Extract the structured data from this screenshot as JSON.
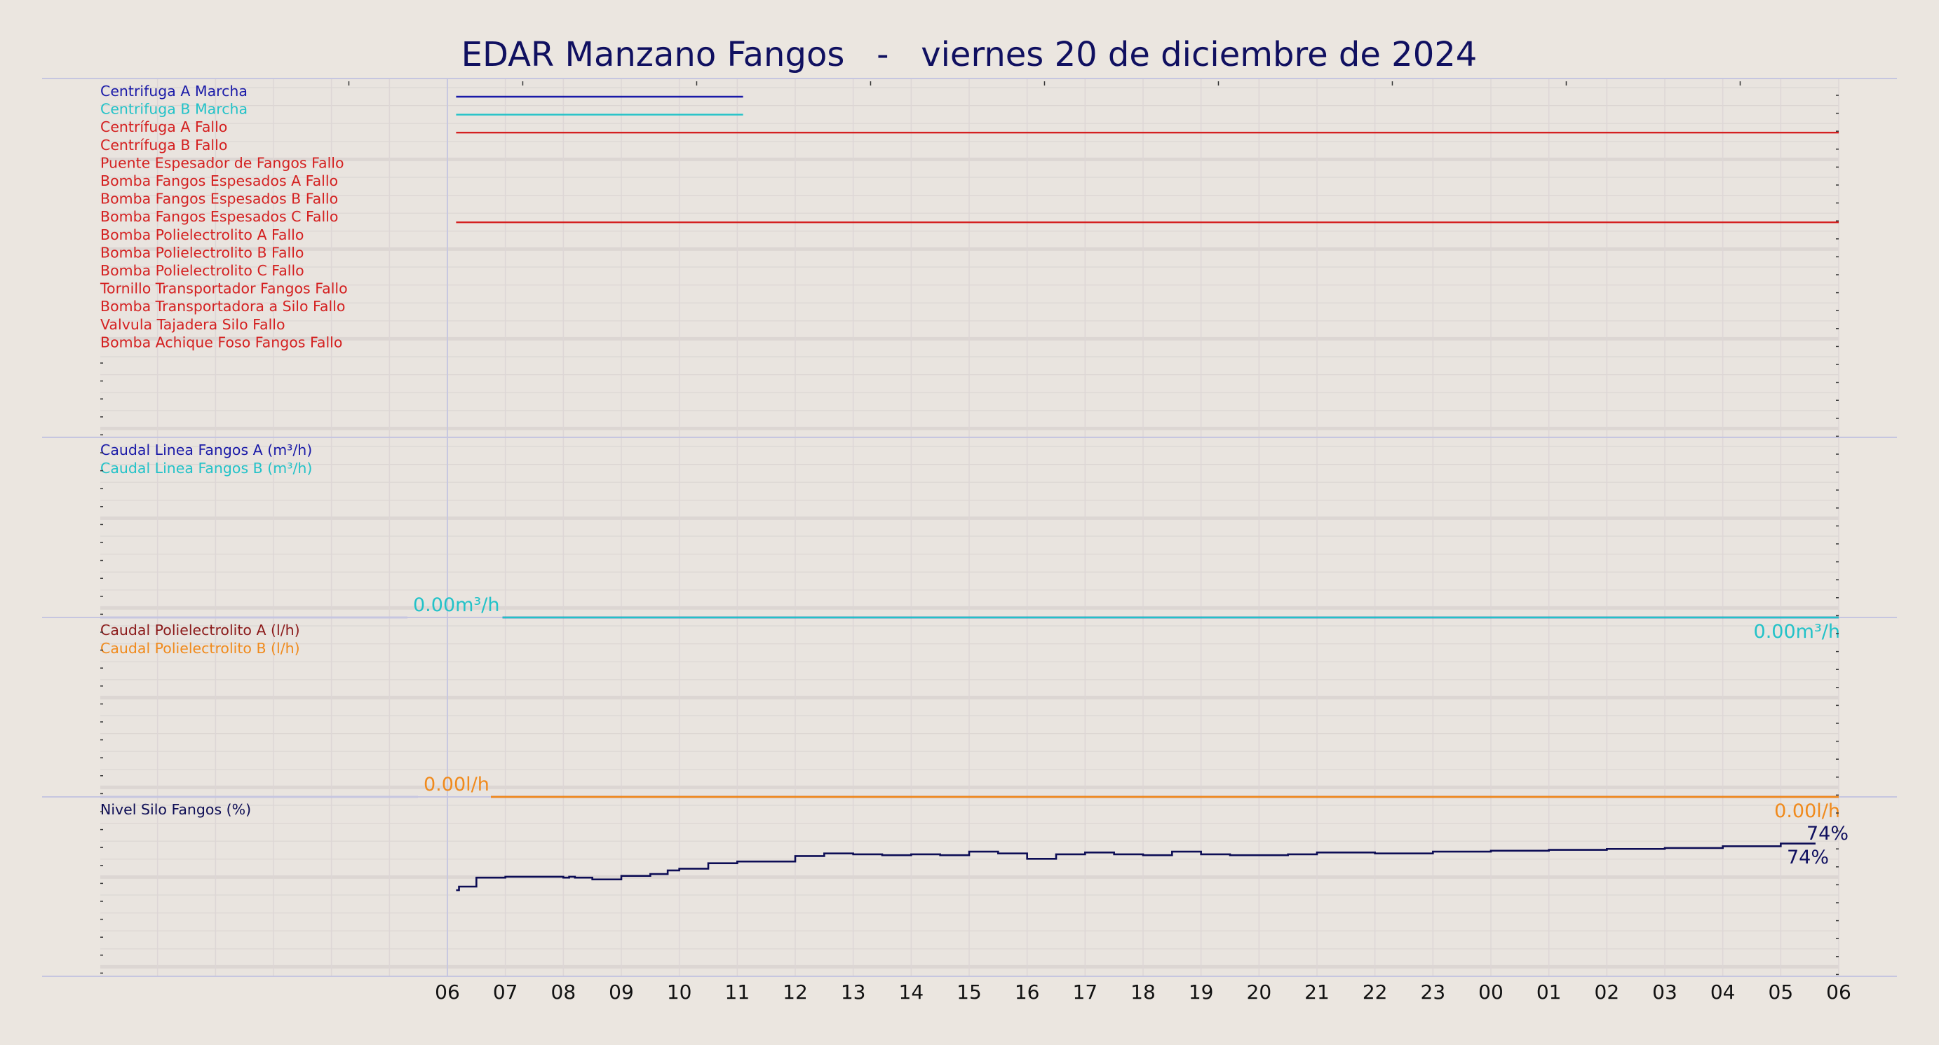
{
  "chart_data": {
    "type": "line",
    "title": "EDAR Manzano Fangos   -   viernes 20 de diciembre de 2024",
    "x_tick_labels": [
      "06",
      "07",
      "08",
      "09",
      "10",
      "11",
      "12",
      "13",
      "14",
      "15",
      "16",
      "17",
      "18",
      "19",
      "20",
      "21",
      "22",
      "23",
      "00",
      "01",
      "02",
      "03",
      "04",
      "05",
      "06"
    ],
    "x_unit": "hours since 06:00",
    "xlim": [
      0,
      24
    ],
    "grid": true,
    "panels": [
      {
        "id": "digital",
        "series": [
          {
            "name": "Centrifuga A Marcha",
            "color": "#1a1aa8",
            "type": "bar",
            "segments": [
              [
                0.15,
                5.1
              ]
            ]
          },
          {
            "name": "Centrifuga B Marcha",
            "color": "#22c2c8",
            "type": "bar",
            "segments": [
              [
                0.15,
                5.1
              ]
            ]
          },
          {
            "name": "Centrífuga A Fallo",
            "color": "#d42020",
            "type": "bar",
            "segments": [
              [
                0.15,
                24
              ]
            ]
          },
          {
            "name": "Centrífuga B Fallo",
            "color": "#d42020",
            "type": "bar",
            "segments": []
          },
          {
            "name": "Puente Espesador de Fangos Fallo",
            "color": "#d42020",
            "type": "bar",
            "segments": []
          },
          {
            "name": "Bomba Fangos Espesados A Fallo",
            "color": "#d42020",
            "type": "bar",
            "segments": []
          },
          {
            "name": "Bomba Fangos Espesados B Fallo",
            "color": "#d42020",
            "type": "bar",
            "segments": []
          },
          {
            "name": "Bomba Fangos Espesados C Fallo",
            "color": "#d42020",
            "type": "bar",
            "segments": [
              [
                0.15,
                24
              ]
            ]
          },
          {
            "name": "Bomba Polielectrolito A Fallo",
            "color": "#d42020",
            "type": "bar",
            "segments": []
          },
          {
            "name": "Bomba Polielectrolito B Fallo",
            "color": "#d42020",
            "type": "bar",
            "segments": []
          },
          {
            "name": "Bomba Polielectrolito C Fallo",
            "color": "#d42020",
            "type": "bar",
            "segments": []
          },
          {
            "name": "Tornillo Transportador Fangos Fallo",
            "color": "#d42020",
            "type": "bar",
            "segments": []
          },
          {
            "name": "Bomba Transportadora a Silo Fallo",
            "color": "#d42020",
            "type": "bar",
            "segments": []
          },
          {
            "name": "Valvula Tajadera Silo Fallo",
            "color": "#d42020",
            "type": "bar",
            "segments": []
          },
          {
            "name": "Bomba Achique Foso Fangos Fallo",
            "color": "#d42020",
            "type": "bar",
            "segments": []
          }
        ]
      },
      {
        "id": "caudal_fangos",
        "unit": "m³/h",
        "ylim": [
          0,
          100
        ],
        "series": [
          {
            "name": "Caudal Linea Fangos A (m³/h)",
            "color": "#1a1aa8",
            "x": [
              0.95,
              24
            ],
            "y": [
              0,
              0
            ]
          },
          {
            "name": "Caudal Linea Fangos B (m³/h)",
            "color": "#22c2c8",
            "x": [
              0.95,
              24
            ],
            "y": [
              0,
              0
            ]
          }
        ],
        "annotations": {
          "start": "0.00m³/h",
          "end": "0.00m³/h"
        }
      },
      {
        "id": "caudal_poli",
        "unit": "l/h",
        "ylim": [
          0,
          100
        ],
        "series": [
          {
            "name": "Caudal Polielectrolito A (l/h)",
            "color": "#8b1a1a",
            "x": [
              0.75,
              24
            ],
            "y": [
              0,
              0
            ]
          },
          {
            "name": "Caudal Polielectrolito B (l/h)",
            "color": "#f08a1c",
            "x": [
              0.75,
              24
            ],
            "y": [
              0,
              0
            ]
          }
        ],
        "annotations": {
          "start": "0.00l/h",
          "end": "0.00l/h"
        }
      },
      {
        "id": "nivel_silo",
        "unit": "%",
        "ylim": [
          0,
          100
        ],
        "series": [
          {
            "name": "Nivel Silo Fangos (%)",
            "color": "#0d0d55",
            "step": true,
            "x": [
              0.15,
              0.2,
              0.5,
              1.0,
              1.5,
              2.0,
              2.1,
              2.2,
              2.5,
              3.0,
              3.5,
              3.8,
              4.0,
              4.5,
              5.0,
              6.0,
              6.5,
              7.0,
              7.5,
              8.0,
              8.5,
              9.0,
              9.5,
              10.0,
              10.5,
              11.0,
              11.5,
              12.0,
              12.5,
              13.0,
              13.5,
              14.0,
              14.5,
              15.0,
              16.0,
              17.0,
              18.0,
              19.0,
              20.0,
              21.0,
              22.0,
              23.0,
              23.6
            ],
            "y": [
              48,
              50,
              55,
              55.5,
              55.5,
              55,
              55.5,
              55,
              54,
              56,
              57,
              59,
              60,
              63,
              64,
              67,
              68.5,
              68,
              67.5,
              68,
              67.5,
              69.5,
              68.5,
              65.5,
              68,
              69,
              68,
              67.5,
              69.5,
              68,
              67.5,
              67.5,
              68,
              69,
              68.5,
              69.5,
              70,
              70.5,
              71,
              71.5,
              72.5,
              74,
              74
            ]
          }
        ],
        "annotations": {
          "end_upper": "74%",
          "end_lower": "74%"
        }
      }
    ]
  }
}
